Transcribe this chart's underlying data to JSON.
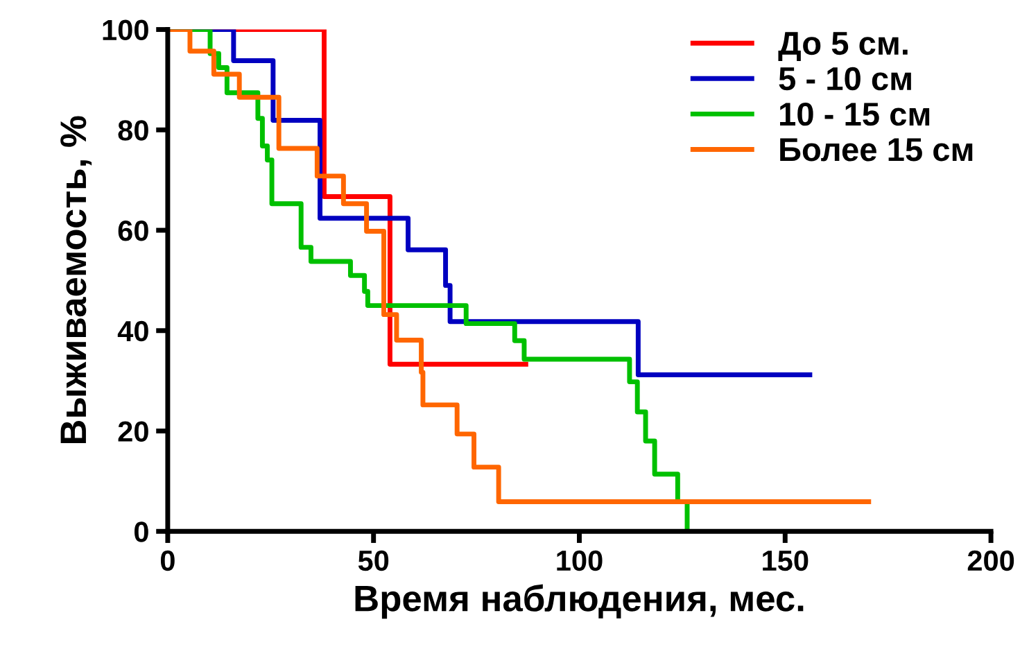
{
  "chart_data": {
    "type": "step",
    "xlabel": "Время наблюдения, мес.",
    "ylabel": "Выживаемость, %",
    "xlim": [
      0,
      200
    ],
    "ylim": [
      0,
      100
    ],
    "xticks": [
      0,
      50,
      100,
      150,
      200
    ],
    "yticks": [
      0,
      20,
      40,
      60,
      80,
      100
    ],
    "grid": false,
    "legend": "top right",
    "series": [
      {
        "name": "До 5 см.",
        "color": "#ff0000",
        "x": [
          0,
          38,
          54,
          87
        ],
        "values": [
          100,
          66.7,
          33.3,
          33.3
        ]
      },
      {
        "name": "5 - 10 см",
        "color": "#0000c0",
        "x": [
          0,
          16,
          25.6,
          37,
          58.4,
          67.5,
          68.6,
          114.3,
          156
        ],
        "values": [
          100,
          93.8,
          81.9,
          62.4,
          56.1,
          49,
          41.8,
          31.2,
          31.2
        ]
      },
      {
        "name": "10 - 15 см",
        "color": "#00c000",
        "x": [
          0,
          10.3,
          12.4,
          14.4,
          21.9,
          23,
          24.2,
          25.3,
          32.4,
          34.8,
          44.4,
          47.8,
          48.6,
          72.5,
          84.3,
          86.6,
          112.2,
          114.1,
          116.1,
          118.3,
          123.9,
          126.2
        ],
        "values": [
          100,
          95.2,
          92.4,
          87.4,
          82.3,
          76.8,
          74,
          65.3,
          56.6,
          53.8,
          51,
          47.8,
          45,
          41.4,
          38,
          34.3,
          29.8,
          23.8,
          18,
          11.4,
          5.9,
          0
        ]
      },
      {
        "name": "Более 15 см",
        "color": "#ff6600",
        "x": [
          0,
          5.4,
          11.2,
          17.4,
          27,
          36.3,
          42.7,
          48.3,
          52.5,
          55.6,
          61.6,
          62,
          70.3,
          74.4,
          80.4,
          170.3
        ],
        "values": [
          100,
          95.7,
          91.1,
          86.5,
          76.3,
          70.8,
          65.3,
          59.8,
          43.2,
          38.1,
          31.7,
          25.2,
          19.4,
          12.8,
          5.9,
          5.9
        ]
      }
    ]
  }
}
